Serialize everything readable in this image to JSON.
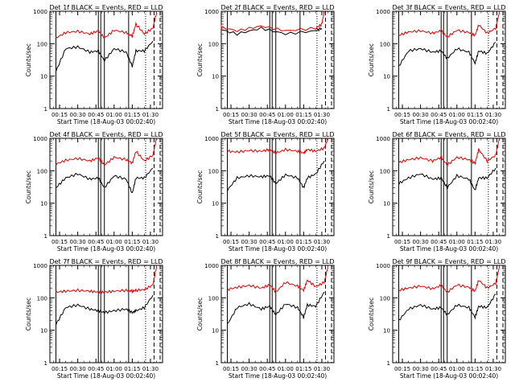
{
  "figure": {
    "title_template": "Det {det}f BLACK = Events, RED = LLD",
    "xlabel": "Start Time (18-Aug-03 00:02:40)",
    "ylabel": "Counts/sec"
  },
  "colors": {
    "events": "#000000",
    "lld": "#e00000",
    "axes": "#000000",
    "background": "#ffffff"
  },
  "chart_data": [
    {
      "type": "line",
      "detector": 1,
      "title": "Det 1f BLACK = Events, RED = LLD",
      "xlabel": "Start Time (18-Aug-03 00:02:40)",
      "ylabel": "Counts/sec",
      "x_ticks": [
        "00:15",
        "00:30",
        "00:45",
        "01:00",
        "01:15",
        "01:30"
      ],
      "y_ticks": [
        "1",
        "10",
        "100",
        "1000"
      ],
      "ylim": [
        1,
        1000
      ],
      "yscale": "log",
      "x_range_min": [
        7,
        100
      ],
      "series": [
        {
          "name": "Events",
          "color": "#000000",
          "x": [
            12,
            20,
            30,
            40,
            47,
            52,
            60,
            70,
            75,
            78,
            85,
            92
          ],
          "values": [
            14,
            70,
            80,
            55,
            60,
            30,
            70,
            55,
            20,
            60,
            60,
            120
          ]
        },
        {
          "name": "LLD",
          "color": "#e00000",
          "x": [
            12,
            20,
            30,
            40,
            47,
            52,
            60,
            70,
            75,
            78,
            85,
            92,
            95
          ],
          "values": [
            150,
            220,
            240,
            200,
            250,
            150,
            260,
            220,
            170,
            400,
            200,
            300,
            900
          ]
        }
      ],
      "vlines_solid_min": [
        12,
        47,
        49,
        52,
        72
      ],
      "vlines_dotted_min": [
        86
      ],
      "vlines_dashed_min": [
        93,
        98
      ]
    },
    {
      "type": "line",
      "detector": 2,
      "title": "Det 2f BLACK = Events, RED = LLD",
      "xlabel": "Start Time (18-Aug-03 00:02:40)",
      "ylabel": "Counts/sec",
      "x_ticks": [
        "00:15",
        "00:30",
        "00:45",
        "01:00",
        "01:15",
        "01:30"
      ],
      "y_ticks": [
        "1",
        "10",
        "100",
        "1000"
      ],
      "ylim": [
        1,
        1000
      ],
      "yscale": "log",
      "x_range_min": [
        7,
        100
      ],
      "series": [
        {
          "name": "Events",
          "color": "#000000",
          "x": [
            2,
            20,
            40,
            60,
            85,
            90
          ],
          "values": [
            300,
            200,
            300,
            200,
            250,
            300
          ]
        },
        {
          "name": "LLD",
          "color": "#e00000",
          "x": [
            2,
            20,
            40,
            60,
            85,
            90,
            92
          ],
          "values": [
            350,
            250,
            350,
            250,
            300,
            400,
            1000
          ]
        }
      ],
      "vlines_solid_min": [
        12,
        47,
        49,
        52,
        72
      ],
      "vlines_dotted_min": [
        86
      ],
      "vlines_dashed_min": [
        93,
        98
      ]
    },
    {
      "type": "line",
      "detector": 3,
      "title": "Det 3f BLACK = Events, RED = LLD",
      "xlabel": "Start Time (18-Aug-03 00:02:40)",
      "ylabel": "Counts/sec",
      "x_ticks": [
        "00:15",
        "00:30",
        "00:45",
        "01:00",
        "01:15",
        "01:30"
      ],
      "y_ticks": [
        "1",
        "10",
        "100",
        "1000"
      ],
      "ylim": [
        1,
        1000
      ],
      "yscale": "log",
      "x_range_min": [
        7,
        100
      ],
      "series": [
        {
          "name": "Events",
          "color": "#000000",
          "x": [
            12,
            20,
            30,
            40,
            47,
            52,
            60,
            70,
            75,
            78,
            85,
            92
          ],
          "values": [
            20,
            60,
            70,
            55,
            60,
            35,
            70,
            55,
            25,
            60,
            50,
            110
          ]
        },
        {
          "name": "LLD",
          "color": "#e00000",
          "x": [
            12,
            20,
            30,
            40,
            47,
            52,
            60,
            70,
            75,
            78,
            85,
            92,
            95
          ],
          "values": [
            180,
            230,
            250,
            210,
            250,
            160,
            260,
            220,
            180,
            380,
            210,
            300,
            900
          ]
        }
      ],
      "vlines_solid_min": [
        12,
        47,
        49,
        52,
        72
      ],
      "vlines_dotted_min": [
        86
      ],
      "vlines_dashed_min": [
        93,
        98
      ]
    },
    {
      "type": "line",
      "detector": 4,
      "title": "Det 4f BLACK = Events, RED = LLD",
      "xlabel": "Start Time (18-Aug-03 00:02:40)",
      "ylabel": "Counts/sec",
      "x_ticks": [
        "00:15",
        "00:30",
        "00:45",
        "01:00",
        "01:15",
        "01:30"
      ],
      "y_ticks": [
        "1",
        "10",
        "100",
        "1000"
      ],
      "ylim": [
        1,
        1000
      ],
      "yscale": "log",
      "x_range_min": [
        7,
        100
      ],
      "series": [
        {
          "name": "Events",
          "color": "#000000",
          "x": [
            12,
            20,
            30,
            40,
            47,
            52,
            60,
            70,
            75,
            78,
            85,
            92
          ],
          "values": [
            30,
            60,
            80,
            55,
            60,
            30,
            70,
            55,
            20,
            60,
            60,
            120
          ]
        },
        {
          "name": "LLD",
          "color": "#e00000",
          "x": [
            12,
            20,
            30,
            40,
            47,
            52,
            60,
            70,
            75,
            78,
            85,
            92,
            95
          ],
          "values": [
            160,
            210,
            240,
            200,
            250,
            150,
            260,
            220,
            170,
            400,
            200,
            300,
            1000
          ]
        }
      ],
      "vlines_solid_min": [
        12,
        47,
        49,
        52,
        72
      ],
      "vlines_dotted_min": [
        86
      ],
      "vlines_dashed_min": [
        93,
        98
      ]
    },
    {
      "type": "line",
      "detector": 5,
      "title": "Det 5f BLACK = Events, RED = LLD",
      "xlabel": "Start Time (18-Aug-03 00:02:40)",
      "ylabel": "Counts/sec",
      "x_ticks": [
        "00:15",
        "00:30",
        "00:45",
        "01:00",
        "01:15",
        "01:30"
      ],
      "y_ticks": [
        "1",
        "10",
        "100",
        "1000"
      ],
      "ylim": [
        1,
        1000
      ],
      "yscale": "log",
      "x_range_min": [
        7,
        100
      ],
      "series": [
        {
          "name": "Events",
          "color": "#000000",
          "x": [
            12,
            20,
            30,
            40,
            47,
            52,
            60,
            70,
            75,
            78,
            85,
            92
          ],
          "values": [
            25,
            60,
            70,
            65,
            70,
            40,
            75,
            60,
            30,
            60,
            80,
            200
          ]
        },
        {
          "name": "LLD",
          "color": "#e00000",
          "x": [
            12,
            20,
            30,
            40,
            47,
            52,
            60,
            70,
            75,
            78,
            85,
            92,
            95
          ],
          "values": [
            400,
            380,
            420,
            400,
            450,
            350,
            450,
            400,
            350,
            450,
            400,
            500,
            1000
          ]
        }
      ],
      "vlines_solid_min": [
        12,
        47,
        49,
        52,
        72
      ],
      "vlines_dotted_min": [
        86
      ],
      "vlines_dashed_min": [
        93,
        98
      ]
    },
    {
      "type": "line",
      "detector": 6,
      "title": "Det 6f BLACK = Events, RED = LLD",
      "xlabel": "Start Time (18-Aug-03 00:02:40)",
      "ylabel": "Counts/sec",
      "x_ticks": [
        "00:15",
        "00:30",
        "00:45",
        "01:00",
        "01:15",
        "01:30"
      ],
      "y_ticks": [
        "1",
        "10",
        "100",
        "1000"
      ],
      "ylim": [
        1,
        1000
      ],
      "yscale": "log",
      "x_range_min": [
        7,
        100
      ],
      "series": [
        {
          "name": "Events",
          "color": "#000000",
          "x": [
            12,
            20,
            30,
            40,
            47,
            52,
            60,
            70,
            75,
            78,
            85,
            92
          ],
          "values": [
            40,
            60,
            80,
            55,
            60,
            30,
            70,
            55,
            25,
            60,
            60,
            120
          ]
        },
        {
          "name": "LLD",
          "color": "#e00000",
          "x": [
            12,
            20,
            30,
            40,
            47,
            52,
            60,
            70,
            75,
            78,
            85,
            92,
            95
          ],
          "values": [
            180,
            220,
            250,
            200,
            260,
            150,
            260,
            220,
            170,
            450,
            200,
            300,
            950
          ]
        }
      ],
      "vlines_solid_min": [
        12,
        47,
        49,
        52,
        72
      ],
      "vlines_dotted_min": [
        86
      ],
      "vlines_dashed_min": [
        93,
        98
      ]
    },
    {
      "type": "line",
      "detector": 7,
      "title": "Det 7f BLACK = Events, RED = LLD",
      "xlabel": "Start Time (18-Aug-03 00:02:40)",
      "ylabel": "Counts/sec",
      "x_ticks": [
        "00:15",
        "00:30",
        "00:45",
        "01:00",
        "01:15",
        "01:30"
      ],
      "y_ticks": [
        "1",
        "10",
        "100",
        "1000"
      ],
      "ylim": [
        1,
        1000
      ],
      "yscale": "log",
      "x_range_min": [
        7,
        100
      ],
      "series": [
        {
          "name": "Events",
          "color": "#000000",
          "x": [
            12,
            20,
            30,
            40,
            47,
            52,
            60,
            70,
            75,
            78,
            85,
            92
          ],
          "values": [
            15,
            50,
            60,
            45,
            40,
            35,
            40,
            45,
            35,
            40,
            50,
            120
          ]
        },
        {
          "name": "LLD",
          "color": "#e00000",
          "x": [
            12,
            20,
            30,
            40,
            47,
            52,
            60,
            70,
            75,
            78,
            85,
            92,
            95
          ],
          "values": [
            150,
            160,
            170,
            160,
            150,
            150,
            160,
            170,
            160,
            170,
            180,
            250,
            900
          ]
        }
      ],
      "vlines_solid_min": [
        12,
        47,
        49,
        52,
        72
      ],
      "vlines_dotted_min": [
        86
      ],
      "vlines_dashed_min": [
        93,
        98
      ]
    },
    {
      "type": "line",
      "detector": 8,
      "title": "Det 8f BLACK = Events, RED = LLD",
      "xlabel": "Start Time (18-Aug-03 00:02:40)",
      "ylabel": "Counts/sec",
      "x_ticks": [
        "00:15",
        "00:30",
        "00:45",
        "01:00",
        "01:15",
        "01:30"
      ],
      "y_ticks": [
        "1",
        "10",
        "100",
        "1000"
      ],
      "ylim": [
        1,
        1000
      ],
      "yscale": "log",
      "x_range_min": [
        7,
        100
      ],
      "series": [
        {
          "name": "Events",
          "color": "#000000",
          "x": [
            12,
            20,
            30,
            40,
            47,
            52,
            60,
            70,
            75,
            78,
            85,
            92
          ],
          "values": [
            15,
            50,
            65,
            45,
            55,
            30,
            65,
            50,
            25,
            60,
            55,
            150
          ]
        },
        {
          "name": "LLD",
          "color": "#e00000",
          "x": [
            12,
            20,
            30,
            40,
            47,
            52,
            60,
            70,
            75,
            78,
            85,
            92,
            95
          ],
          "values": [
            180,
            210,
            240,
            200,
            250,
            150,
            300,
            230,
            170,
            350,
            220,
            300,
            900
          ]
        }
      ],
      "vlines_solid_min": [
        12,
        47,
        49,
        52,
        72
      ],
      "vlines_dotted_min": [
        86
      ],
      "vlines_dashed_min": [
        93,
        98
      ]
    },
    {
      "type": "line",
      "detector": 9,
      "title": "Det 9f BLACK = Events, RED = LLD",
      "xlabel": "Start Time (18-Aug-03 00:02:40)",
      "ylabel": "Counts/sec",
      "x_ticks": [
        "00:15",
        "00:30",
        "00:45",
        "01:00",
        "01:15",
        "01:30"
      ],
      "y_ticks": [
        "1",
        "10",
        "100",
        "1000"
      ],
      "ylim": [
        1,
        1000
      ],
      "yscale": "log",
      "x_range_min": [
        7,
        100
      ],
      "series": [
        {
          "name": "Events",
          "color": "#000000",
          "x": [
            12,
            20,
            30,
            40,
            47,
            52,
            60,
            70,
            75,
            78,
            85,
            92
          ],
          "values": [
            20,
            45,
            60,
            45,
            50,
            30,
            60,
            50,
            25,
            55,
            50,
            130
          ]
        },
        {
          "name": "LLD",
          "color": "#e00000",
          "x": [
            12,
            20,
            30,
            40,
            47,
            52,
            60,
            70,
            75,
            78,
            85,
            92,
            95
          ],
          "values": [
            170,
            200,
            230,
            190,
            240,
            150,
            250,
            210,
            160,
            350,
            200,
            280,
            900
          ]
        }
      ],
      "vlines_solid_min": [
        12,
        47,
        49,
        52,
        72
      ],
      "vlines_dotted_min": [
        86
      ],
      "vlines_dashed_min": [
        93,
        98
      ]
    }
  ]
}
